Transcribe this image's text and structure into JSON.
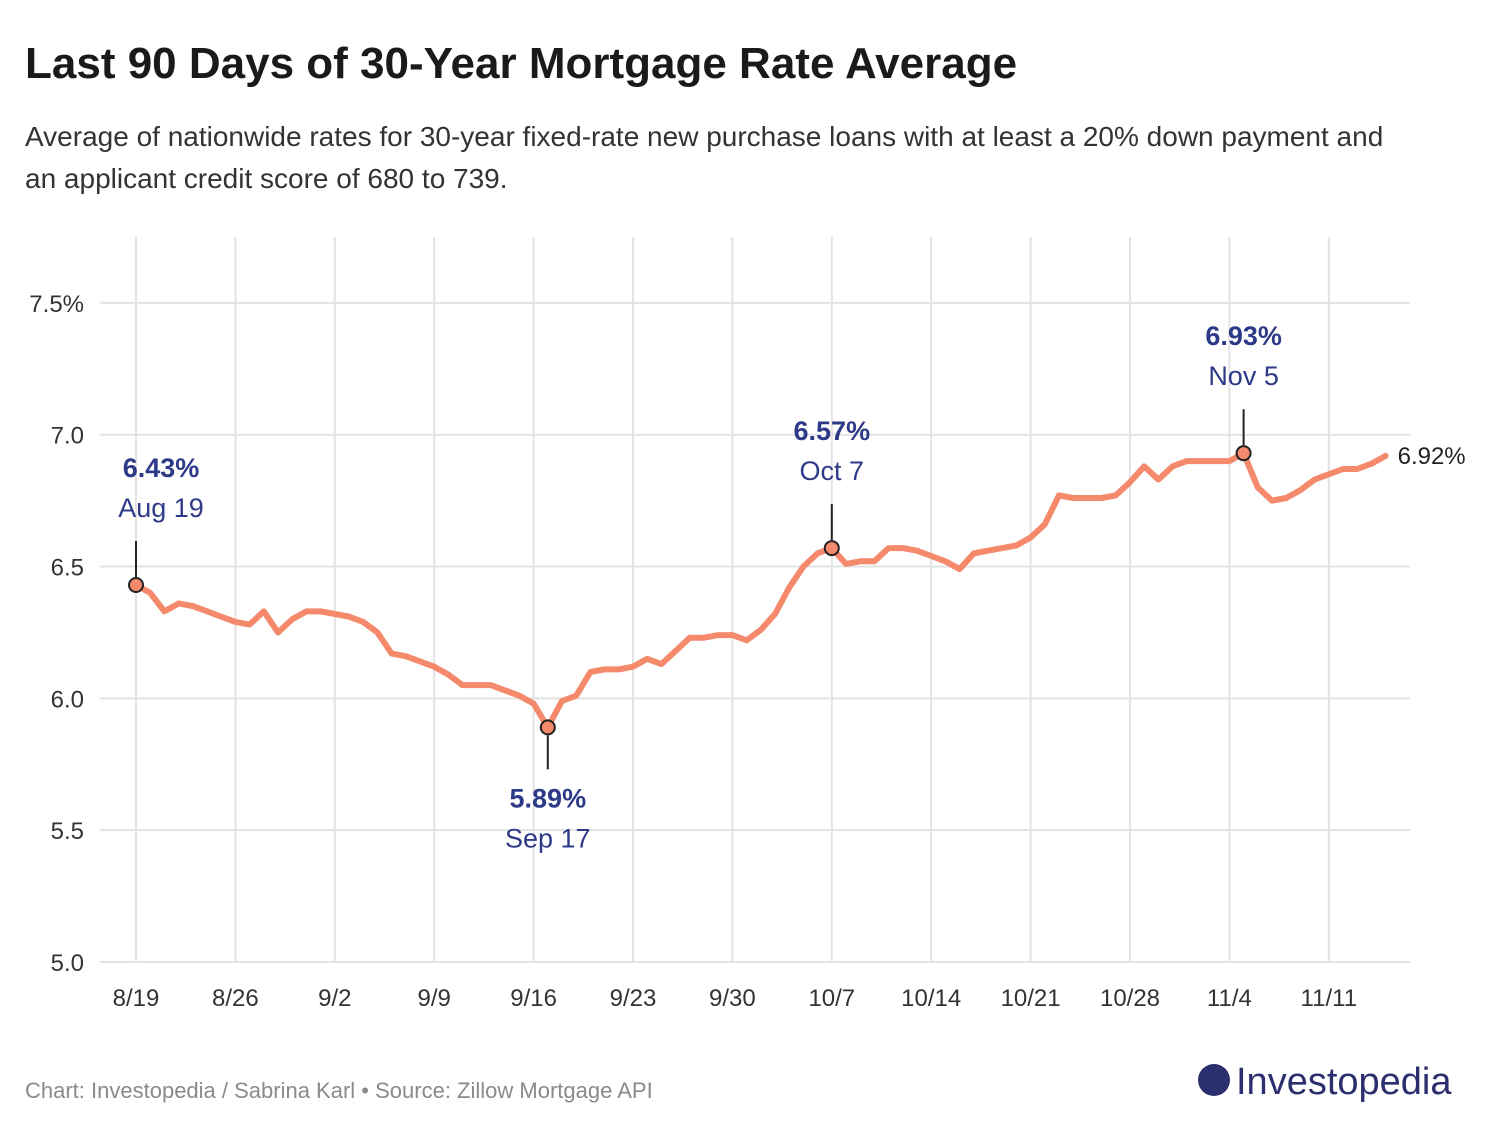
{
  "chart_data": {
    "type": "line",
    "title": "Last 90 Days of 30-Year Mortgage Rate Average",
    "subtitle": "Average of nationwide rates for 30-year fixed-rate new purchase loans with at least a 20% down payment and an applicant credit score of 680 to 739.",
    "source": "Chart: Investopedia / Sabrina Karl • Source: Zillow Mortgage API",
    "brand": "Investopedia",
    "color": "#f4896b",
    "grid": true,
    "categories": [
      "8/19",
      "8/20",
      "8/21",
      "8/22",
      "8/23",
      "8/24",
      "8/25",
      "8/26",
      "8/27",
      "8/28",
      "8/29",
      "8/30",
      "8/31",
      "9/1",
      "9/2",
      "9/3",
      "9/4",
      "9/5",
      "9/6",
      "9/7",
      "9/8",
      "9/9",
      "9/10",
      "9/11",
      "9/12",
      "9/13",
      "9/14",
      "9/15",
      "9/16",
      "9/17",
      "9/18",
      "9/19",
      "9/20",
      "9/21",
      "9/22",
      "9/23",
      "9/24",
      "9/25",
      "9/26",
      "9/27",
      "9/28",
      "9/29",
      "9/30",
      "10/1",
      "10/2",
      "10/3",
      "10/4",
      "10/5",
      "10/6",
      "10/7",
      "10/8",
      "10/9",
      "10/10",
      "10/11",
      "10/12",
      "10/13",
      "10/14",
      "10/15",
      "10/16",
      "10/17",
      "10/18",
      "10/19",
      "10/20",
      "10/21",
      "10/22",
      "10/23",
      "10/24",
      "10/25",
      "10/26",
      "10/27",
      "10/28",
      "10/29",
      "10/30",
      "10/31",
      "11/1",
      "11/2",
      "11/3",
      "11/4",
      "11/5",
      "11/6",
      "11/7",
      "11/8",
      "11/9",
      "11/10",
      "11/11",
      "11/12",
      "11/13",
      "11/14",
      "11/15"
    ],
    "values": [
      6.43,
      6.4,
      6.33,
      6.36,
      6.35,
      6.33,
      6.31,
      6.29,
      6.28,
      6.33,
      6.25,
      6.3,
      6.33,
      6.33,
      6.32,
      6.31,
      6.29,
      6.25,
      6.17,
      6.16,
      6.14,
      6.12,
      6.09,
      6.05,
      6.05,
      6.05,
      6.03,
      6.01,
      5.98,
      5.89,
      5.99,
      6.01,
      6.1,
      6.11,
      6.11,
      6.12,
      6.15,
      6.13,
      6.18,
      6.23,
      6.23,
      6.24,
      6.24,
      6.22,
      6.26,
      6.32,
      6.42,
      6.5,
      6.55,
      6.57,
      6.51,
      6.52,
      6.52,
      6.57,
      6.57,
      6.56,
      6.54,
      6.52,
      6.49,
      6.55,
      6.56,
      6.57,
      6.58,
      6.61,
      6.66,
      6.77,
      6.76,
      6.76,
      6.76,
      6.77,
      6.82,
      6.88,
      6.83,
      6.88,
      6.9,
      6.9,
      6.9,
      6.9,
      6.93,
      6.8,
      6.75,
      6.76,
      6.79,
      6.83,
      6.85,
      6.87,
      6.87,
      6.89,
      6.92
    ],
    "xticks": [
      "8/19",
      "8/26",
      "9/2",
      "9/9",
      "9/16",
      "9/23",
      "9/30",
      "10/7",
      "10/14",
      "10/21",
      "10/28",
      "11/4",
      "11/11"
    ],
    "ylim": [
      5.0,
      7.75
    ],
    "yticks": [
      {
        "value": 5.0,
        "label": "5.0"
      },
      {
        "value": 5.5,
        "label": "5.5"
      },
      {
        "value": 6.0,
        "label": "6.0"
      },
      {
        "value": 6.5,
        "label": "6.5"
      },
      {
        "value": 7.0,
        "label": "7.0"
      },
      {
        "value": 7.5,
        "label": "7.5%"
      }
    ],
    "annotations": [
      {
        "x": "8/19",
        "label": "6.43%",
        "date": "Aug 19",
        "position": "above"
      },
      {
        "x": "9/17",
        "label": "5.89%",
        "date": "Sep 17",
        "position": "below"
      },
      {
        "x": "10/7",
        "label": "6.57%",
        "date": "Oct 7",
        "position": "above"
      },
      {
        "x": "11/5",
        "label": "6.93%",
        "date": "Nov 5",
        "position": "above"
      }
    ],
    "end_label": "6.92%"
  }
}
